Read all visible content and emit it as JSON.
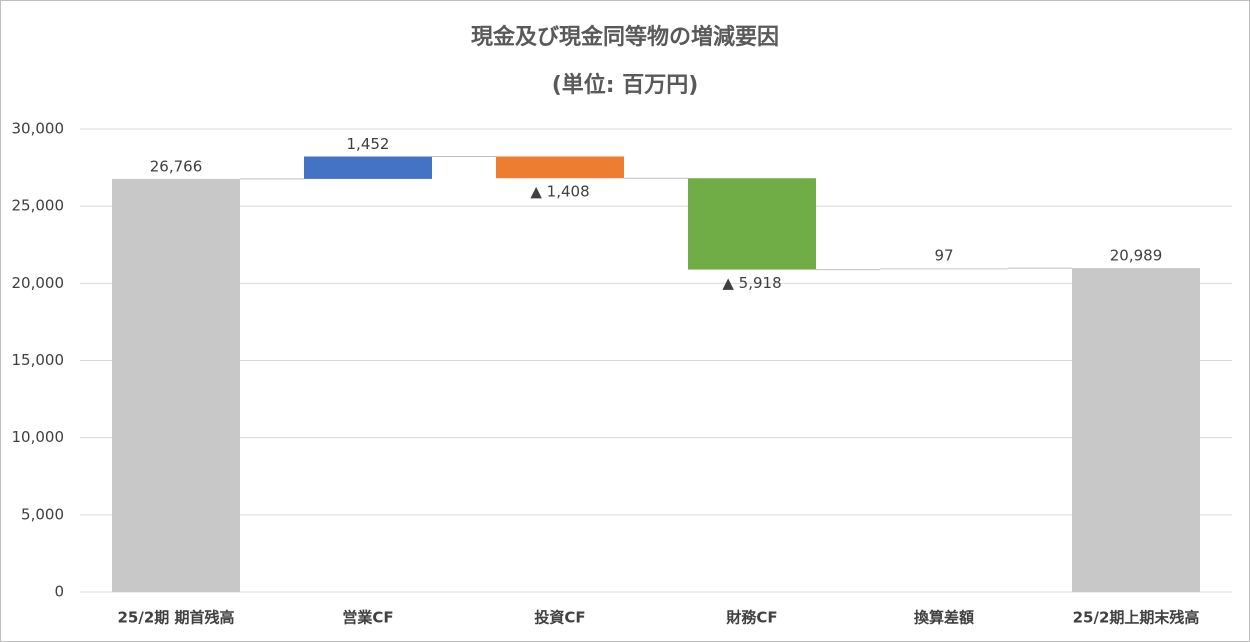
{
  "chart_data": {
    "type": "waterfall",
    "title": "現金及び現金同等物の増減要因",
    "subtitle": "(単位: 百万円)",
    "categories": [
      "25/2期 期首残高",
      "営業CF",
      "投資CF",
      "財務CF",
      "換算差額",
      "25/2期上期末残高"
    ],
    "values": [
      26766,
      1452,
      -1408,
      -5918,
      97,
      20989
    ],
    "value_labels": [
      "26,766",
      "1,452",
      "▲ 1,408",
      "▲ 5,918",
      "97",
      "20,989"
    ],
    "is_total": [
      true,
      false,
      false,
      false,
      false,
      true
    ],
    "colors": [
      "#c8c8c8",
      "#4472c4",
      "#ed7d31",
      "#70ad47",
      "#d9d9d9",
      "#c8c8c8"
    ],
    "ylim": [
      0,
      30000
    ],
    "yticks": [
      0,
      {
        "value": 5000,
        "label": "5,000"
      },
      {
        "value": 10000,
        "label": "10,000"
      },
      {
        "value": 15000,
        "label": "15,000"
      },
      {
        "value": 20000,
        "label": "20,000"
      },
      {
        "value": 25000,
        "label": "25,000"
      },
      {
        "value": 30000,
        "label": "30,000"
      }
    ],
    "grid": true
  }
}
